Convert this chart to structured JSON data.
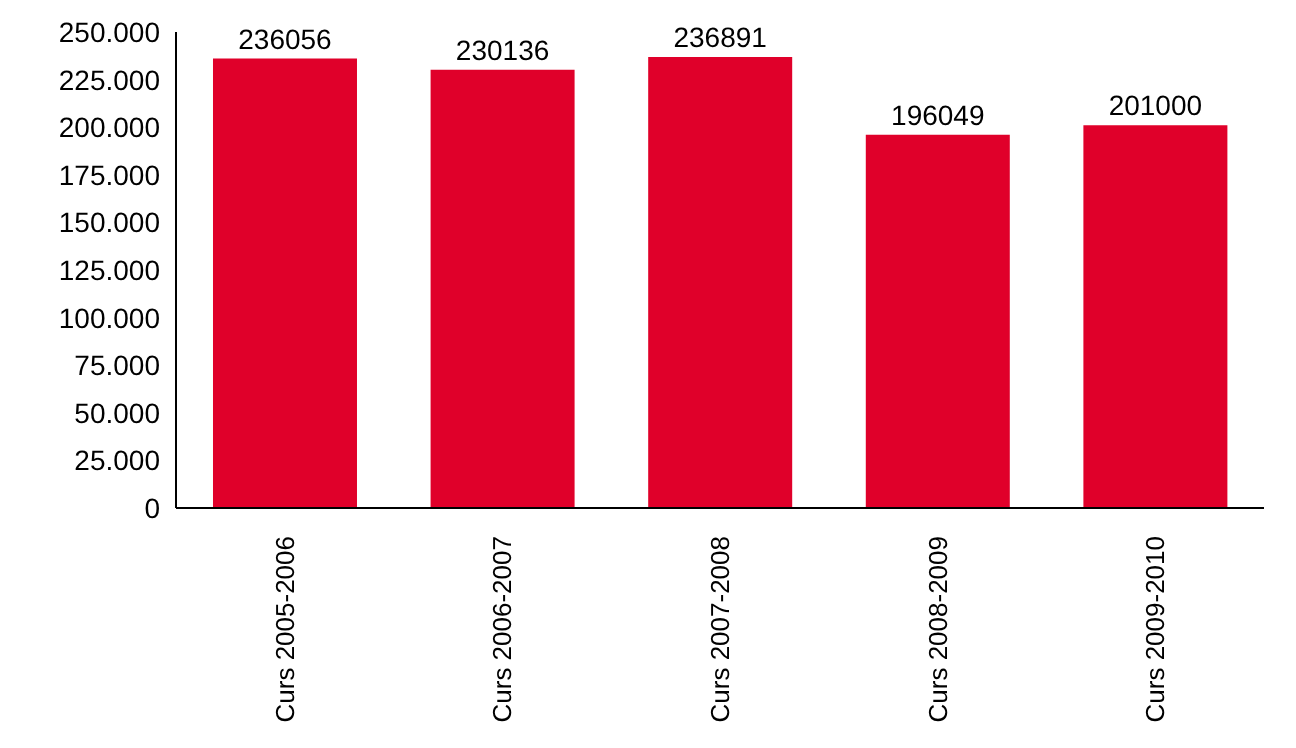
{
  "chart_data": {
    "type": "bar",
    "categories": [
      "Curs 2005-2006",
      "Curs 2006-2007",
      "Curs 2007-2008",
      "Curs 2008-2009",
      "Curs 2009-2010"
    ],
    "values": [
      236056,
      230136,
      236891,
      196049,
      201000
    ],
    "color": "#e0002a",
    "ylim": [
      0,
      250000
    ],
    "yticks": [
      {
        "value": 0,
        "label": "0"
      },
      {
        "value": 25000,
        "label": "25.000"
      },
      {
        "value": 50000,
        "label": "50.000"
      },
      {
        "value": 75000,
        "label": "75.000"
      },
      {
        "value": 100000,
        "label": "100.000"
      },
      {
        "value": 125000,
        "label": "125.000"
      },
      {
        "value": 150000,
        "label": "150.000"
      },
      {
        "value": 175000,
        "label": "175.000"
      },
      {
        "value": 200000,
        "label": "200.000"
      },
      {
        "value": 225000,
        "label": "225.000"
      },
      {
        "value": 250000,
        "label": "250.000"
      }
    ],
    "data_labels": true
  }
}
